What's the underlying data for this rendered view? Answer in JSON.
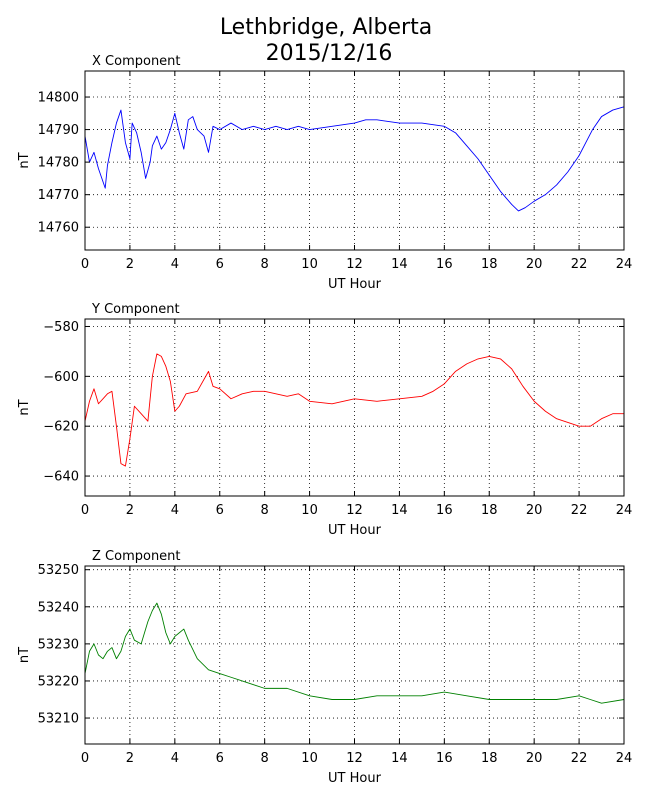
{
  "figure": {
    "title_line1": "Lethbridge, Alberta",
    "title_line2": "2015/12/16"
  },
  "chart_data": [
    {
      "type": "line",
      "title": "X Component",
      "xlabel": "UT Hour",
      "ylabel": "nT",
      "xlim": [
        0,
        24
      ],
      "ylim": [
        14753,
        14808
      ],
      "xticks": [
        0,
        2,
        4,
        6,
        8,
        10,
        12,
        14,
        16,
        18,
        20,
        22,
        24
      ],
      "yticks": [
        14760,
        14770,
        14780,
        14790,
        14800
      ],
      "grid": true,
      "series": [
        {
          "color": "#0000ff",
          "x": [
            0,
            0.2,
            0.4,
            0.6,
            0.9,
            1.0,
            1.2,
            1.4,
            1.6,
            1.8,
            2.0,
            2.1,
            2.3,
            2.5,
            2.7,
            2.9,
            3.0,
            3.2,
            3.4,
            3.6,
            3.8,
            4.0,
            4.2,
            4.4,
            4.6,
            4.8,
            5.0,
            5.3,
            5.5,
            5.7,
            6.0,
            6.5,
            7.0,
            7.5,
            8.0,
            8.5,
            9.0,
            9.5,
            10.0,
            11.0,
            12.0,
            12.5,
            13.0,
            14.0,
            15.0,
            16.0,
            16.5,
            17.0,
            17.5,
            18.0,
            18.5,
            19.0,
            19.3,
            19.6,
            20.0,
            20.5,
            21.0,
            21.5,
            22.0,
            22.3,
            22.6,
            23.0,
            23.5,
            24.0
          ],
          "values": [
            14788,
            14780,
            14783,
            14778,
            14772,
            14779,
            14786,
            14792,
            14796,
            14786,
            14781,
            14792,
            14789,
            14783,
            14775,
            14780,
            14785,
            14788,
            14784,
            14786,
            14790,
            14795,
            14789,
            14784,
            14793,
            14794,
            14790,
            14788,
            14783,
            14791,
            14790,
            14792,
            14790,
            14791,
            14790,
            14791,
            14790,
            14791,
            14790,
            14791,
            14792,
            14793,
            14793,
            14792,
            14792,
            14791,
            14789,
            14785,
            14781,
            14776,
            14771,
            14767,
            14765,
            14766,
            14768,
            14770,
            14773,
            14777,
            14782,
            14786,
            14790,
            14794,
            14796,
            14797
          ]
        }
      ]
    },
    {
      "type": "line",
      "title": "Y Component",
      "xlabel": "UT Hour",
      "ylabel": "nT",
      "xlim": [
        0,
        24
      ],
      "ylim": [
        -648,
        -577
      ],
      "xticks": [
        0,
        2,
        4,
        6,
        8,
        10,
        12,
        14,
        16,
        18,
        20,
        22,
        24
      ],
      "yticks": [
        -580,
        -600,
        -620,
        -640
      ],
      "grid": true,
      "series": [
        {
          "color": "#ff0000",
          "x": [
            0,
            0.2,
            0.4,
            0.6,
            0.8,
            1.0,
            1.2,
            1.4,
            1.6,
            1.8,
            2.0,
            2.2,
            2.5,
            2.8,
            3.0,
            3.2,
            3.4,
            3.6,
            3.8,
            4.0,
            4.2,
            4.5,
            5.0,
            5.5,
            5.7,
            6.0,
            6.5,
            7.0,
            7.5,
            8.0,
            9.0,
            9.5,
            10.0,
            11.0,
            12.0,
            13.0,
            14.0,
            15.0,
            15.5,
            16.0,
            16.5,
            17.0,
            17.5,
            18.0,
            18.5,
            19.0,
            19.5,
            20.0,
            20.5,
            21.0,
            22.0,
            22.5,
            23.0,
            23.5,
            24.0
          ],
          "values": [
            -618,
            -610,
            -605,
            -611,
            -609,
            -607,
            -606,
            -620,
            -635,
            -636,
            -625,
            -612,
            -615,
            -618,
            -600,
            -591,
            -592,
            -596,
            -602,
            -614,
            -612,
            -607,
            -606,
            -598,
            -604,
            -605,
            -609,
            -607,
            -606,
            -606,
            -608,
            -607,
            -610,
            -611,
            -609,
            -610,
            -609,
            -608,
            -606,
            -603,
            -598,
            -595,
            -593,
            -592,
            -593,
            -597,
            -604,
            -610,
            -614,
            -617,
            -620,
            -620,
            -617,
            -615,
            -615
          ]
        }
      ]
    },
    {
      "type": "line",
      "title": "Z Component",
      "xlabel": "UT Hour",
      "ylabel": "nT",
      "xlim": [
        0,
        24
      ],
      "ylim": [
        53203,
        53251
      ],
      "xticks": [
        0,
        2,
        4,
        6,
        8,
        10,
        12,
        14,
        16,
        18,
        20,
        22,
        24
      ],
      "yticks": [
        53210,
        53220,
        53230,
        53240,
        53250
      ],
      "grid": true,
      "series": [
        {
          "color": "#008000",
          "x": [
            0,
            0.2,
            0.4,
            0.6,
            0.8,
            1.0,
            1.2,
            1.4,
            1.6,
            1.8,
            2.0,
            2.2,
            2.5,
            2.8,
            3.0,
            3.2,
            3.4,
            3.6,
            3.8,
            4.0,
            4.2,
            4.4,
            4.6,
            5.0,
            5.5,
            6.0,
            6.5,
            7.0,
            7.5,
            8.0,
            9.0,
            10.0,
            11.0,
            12.0,
            13.0,
            14.0,
            15.0,
            16.0,
            17.0,
            18.0,
            19.0,
            20.0,
            21.0,
            22.0,
            22.5,
            23.0,
            24.0
          ],
          "values": [
            53222,
            53228,
            53230,
            53227,
            53226,
            53228,
            53229,
            53226,
            53228,
            53232,
            53234,
            53231,
            53230,
            53236,
            53239,
            53241,
            53238,
            53233,
            53230,
            53232,
            53233,
            53234,
            53231,
            53226,
            53223,
            53222,
            53221,
            53220,
            53219,
            53218,
            53218,
            53216,
            53215,
            53215,
            53216,
            53216,
            53216,
            53217,
            53216,
            53215,
            53215,
            53215,
            53215,
            53216,
            53215,
            53214,
            53215
          ]
        }
      ]
    }
  ]
}
